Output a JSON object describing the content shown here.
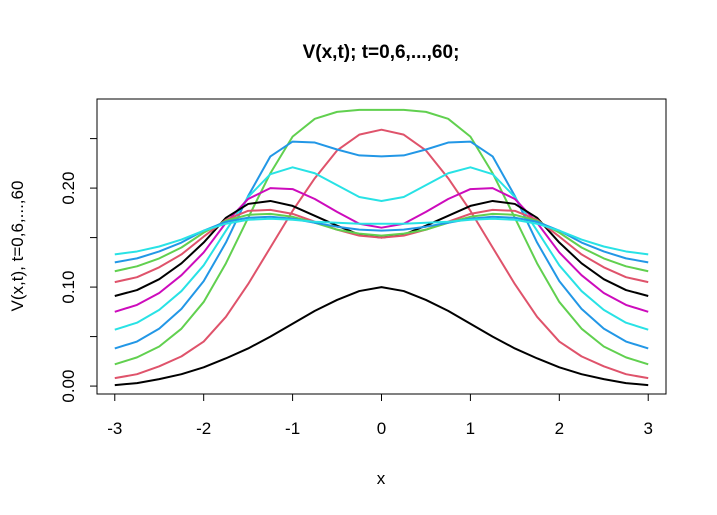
{
  "chart_data": {
    "type": "line",
    "title": "V(x,t); t=0,6,...,60;",
    "xlabel": "x",
    "ylabel": "V(x,t), t=0,6,...,60",
    "xlim": [
      -3.2,
      3.2
    ],
    "ylim": [
      -0.008,
      0.29
    ],
    "x_ticks": [
      -3,
      -2,
      -1,
      0,
      1,
      2,
      3
    ],
    "x_tick_labels": [
      "-3",
      "-2",
      "-1",
      "0",
      "1",
      "2",
      "3"
    ],
    "y_ticks": [
      0.0,
      0.05,
      0.1,
      0.15,
      0.2,
      0.25
    ],
    "y_tick_labels": [
      "0.00",
      "",
      "0.10",
      "",
      "0.20",
      ""
    ],
    "grid": false,
    "legend": "none",
    "x": [
      -3,
      -2.75,
      -2.5,
      -2.25,
      -2,
      -1.75,
      -1.5,
      -1.25,
      -1,
      -0.75,
      -0.5,
      -0.25,
      0,
      0.25,
      0.5,
      0.75,
      1,
      1.25,
      1.5,
      1.75,
      2,
      2.25,
      2.5,
      2.75,
      3
    ],
    "series": [
      {
        "color": "#000000",
        "values": [
          0.001,
          0.003,
          0.007,
          0.012,
          0.019,
          0.028,
          0.038,
          0.05,
          0.063,
          0.076,
          0.087,
          0.096,
          0.1,
          0.096,
          0.087,
          0.076,
          0.063,
          0.05,
          0.038,
          0.028,
          0.019,
          0.012,
          0.007,
          0.003,
          0.001
        ]
      },
      {
        "color": "#DF536B",
        "values": [
          0.008,
          0.012,
          0.02,
          0.03,
          0.045,
          0.07,
          0.103,
          0.14,
          0.177,
          0.21,
          0.238,
          0.254,
          0.259,
          0.254,
          0.238,
          0.21,
          0.177,
          0.14,
          0.103,
          0.07,
          0.045,
          0.03,
          0.02,
          0.012,
          0.008
        ]
      },
      {
        "color": "#61D04F",
        "values": [
          0.022,
          0.029,
          0.04,
          0.058,
          0.085,
          0.124,
          0.17,
          0.215,
          0.252,
          0.27,
          0.277,
          0.279,
          0.279,
          0.279,
          0.277,
          0.27,
          0.252,
          0.215,
          0.17,
          0.124,
          0.085,
          0.058,
          0.04,
          0.029,
          0.022
        ]
      },
      {
        "color": "#2297E6",
        "values": [
          0.038,
          0.045,
          0.058,
          0.078,
          0.106,
          0.145,
          0.192,
          0.232,
          0.247,
          0.246,
          0.239,
          0.233,
          0.232,
          0.233,
          0.239,
          0.246,
          0.247,
          0.232,
          0.192,
          0.145,
          0.106,
          0.078,
          0.058,
          0.045,
          0.038
        ]
      },
      {
        "color": "#28E2E5",
        "values": [
          0.057,
          0.064,
          0.077,
          0.096,
          0.122,
          0.157,
          0.191,
          0.214,
          0.221,
          0.215,
          0.203,
          0.191,
          0.187,
          0.191,
          0.203,
          0.215,
          0.221,
          0.214,
          0.191,
          0.157,
          0.122,
          0.096,
          0.077,
          0.064,
          0.057
        ]
      },
      {
        "color": "#CD0BBC",
        "values": [
          0.075,
          0.082,
          0.094,
          0.112,
          0.135,
          0.165,
          0.189,
          0.2,
          0.199,
          0.189,
          0.176,
          0.164,
          0.16,
          0.164,
          0.176,
          0.189,
          0.199,
          0.2,
          0.189,
          0.165,
          0.135,
          0.112,
          0.094,
          0.082,
          0.075
        ]
      },
      {
        "color": "#000000",
        "values": [
          0.091,
          0.097,
          0.108,
          0.124,
          0.145,
          0.17,
          0.184,
          0.187,
          0.182,
          0.172,
          0.162,
          0.153,
          0.15,
          0.153,
          0.162,
          0.172,
          0.182,
          0.187,
          0.184,
          0.17,
          0.145,
          0.124,
          0.108,
          0.097,
          0.091
        ]
      },
      {
        "color": "#DF536B",
        "values": [
          0.105,
          0.11,
          0.12,
          0.133,
          0.151,
          0.168,
          0.177,
          0.178,
          0.174,
          0.166,
          0.158,
          0.152,
          0.15,
          0.152,
          0.158,
          0.166,
          0.174,
          0.178,
          0.177,
          0.168,
          0.151,
          0.133,
          0.12,
          0.11,
          0.105
        ]
      },
      {
        "color": "#61D04F",
        "values": [
          0.116,
          0.121,
          0.129,
          0.14,
          0.155,
          0.167,
          0.173,
          0.174,
          0.171,
          0.165,
          0.158,
          0.154,
          0.152,
          0.154,
          0.158,
          0.165,
          0.171,
          0.174,
          0.173,
          0.167,
          0.155,
          0.14,
          0.129,
          0.121,
          0.116
        ]
      },
      {
        "color": "#2297E6",
        "values": [
          0.125,
          0.129,
          0.136,
          0.145,
          0.157,
          0.166,
          0.17,
          0.171,
          0.169,
          0.165,
          0.161,
          0.158,
          0.157,
          0.158,
          0.161,
          0.165,
          0.169,
          0.171,
          0.17,
          0.166,
          0.157,
          0.145,
          0.136,
          0.129,
          0.125
        ]
      },
      {
        "color": "#28E2E5",
        "values": [
          0.133,
          0.136,
          0.141,
          0.148,
          0.157,
          0.164,
          0.168,
          0.169,
          0.168,
          0.166,
          0.165,
          0.164,
          0.164,
          0.164,
          0.165,
          0.166,
          0.168,
          0.169,
          0.168,
          0.164,
          0.157,
          0.148,
          0.141,
          0.136,
          0.133
        ]
      }
    ]
  }
}
